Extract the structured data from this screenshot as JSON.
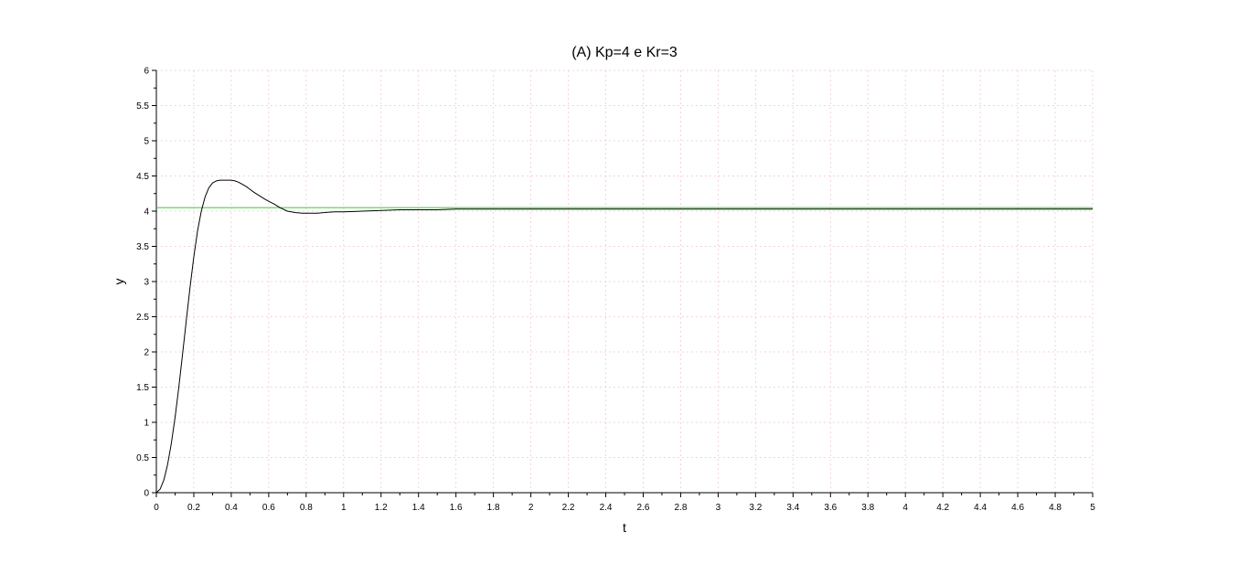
{
  "chart_data": {
    "type": "line",
    "title": "(A) Kp=4 e Kr=3",
    "xlabel": "t",
    "ylabel": "y",
    "xlim": [
      0,
      5
    ],
    "ylim": [
      0,
      6
    ],
    "grid": true,
    "x_ticks": [
      0,
      0.2,
      0.4,
      0.6,
      0.8,
      1,
      1.2,
      1.4,
      1.6,
      1.8,
      2,
      2.2,
      2.4,
      2.6,
      2.8,
      3,
      3.2,
      3.4,
      3.6,
      3.8,
      4,
      4.2,
      4.4,
      4.6,
      4.8,
      5
    ],
    "x_tick_labels": [
      "0",
      "0.2",
      "0.4",
      "0.6",
      "0.8",
      "1",
      "1.2",
      "1.4",
      "1.6",
      "1.8",
      "2",
      "2.2",
      "2.4",
      "2.6",
      "2.8",
      "3",
      "3.2",
      "3.4",
      "3.6",
      "3.8",
      "4",
      "4.2",
      "4.4",
      "4.6",
      "4.8",
      "5"
    ],
    "y_ticks": [
      0,
      0.5,
      1,
      1.5,
      2,
      2.5,
      3,
      3.5,
      4,
      4.5,
      5,
      5.5,
      6
    ],
    "y_tick_labels": [
      "0",
      "0.5",
      "1",
      "1.5",
      "2",
      "2.5",
      "3",
      "3.5",
      "4",
      "4.5",
      "5",
      "5.5",
      "6"
    ],
    "series": [
      {
        "color": "#000000",
        "x": [
          0,
          0.02,
          0.04,
          0.06,
          0.08,
          0.1,
          0.12,
          0.14,
          0.16,
          0.18,
          0.2,
          0.22,
          0.24,
          0.26,
          0.28,
          0.3,
          0.32,
          0.34,
          0.36,
          0.38,
          0.4,
          0.42,
          0.44,
          0.46,
          0.48,
          0.5,
          0.52,
          0.55,
          0.58,
          0.6,
          0.63,
          0.66,
          0.7,
          0.74,
          0.78,
          0.82,
          0.86,
          0.9,
          0.95,
          1.0,
          1.1,
          1.2,
          1.3,
          1.4,
          1.5,
          1.6,
          1.8,
          2.0,
          2.5,
          3.0,
          3.5,
          4.0,
          4.5,
          5.0
        ],
        "y": [
          0,
          0.05,
          0.18,
          0.4,
          0.7,
          1.07,
          1.5,
          1.97,
          2.45,
          2.92,
          3.35,
          3.72,
          4.0,
          4.2,
          4.33,
          4.4,
          4.43,
          4.44,
          4.44,
          4.44,
          4.44,
          4.43,
          4.41,
          4.38,
          4.35,
          4.31,
          4.27,
          4.22,
          4.17,
          4.14,
          4.1,
          4.05,
          4.0,
          3.98,
          3.97,
          3.97,
          3.97,
          3.98,
          3.99,
          3.99,
          4.0,
          4.01,
          4.02,
          4.02,
          4.02,
          4.03,
          4.03,
          4.03,
          4.03,
          4.03,
          4.03,
          4.03,
          4.03,
          4.03
        ]
      },
      {
        "color": "#33cc33",
        "x": [
          0,
          5
        ],
        "y": [
          4.05,
          4.05
        ]
      }
    ]
  }
}
